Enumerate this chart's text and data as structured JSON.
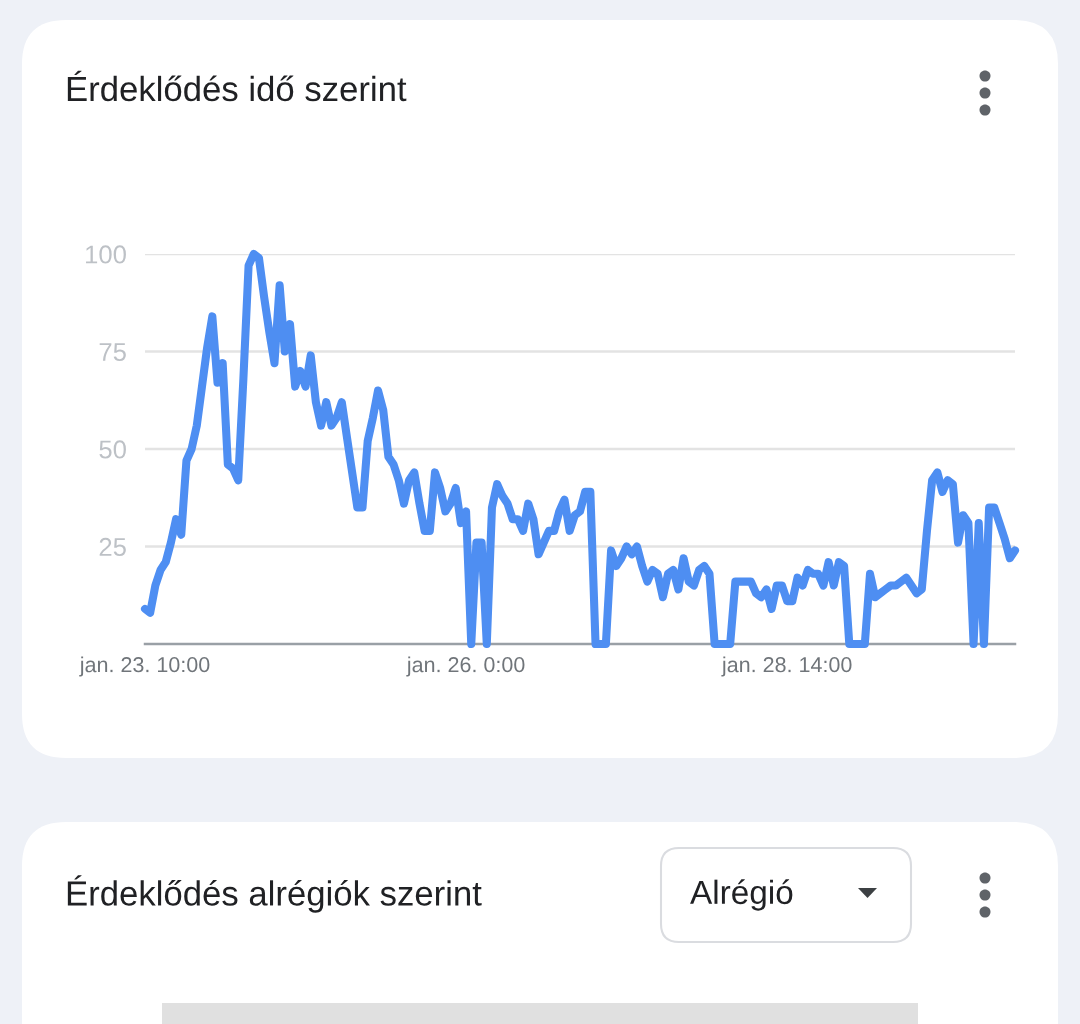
{
  "chart_data": [
    {
      "type": "line",
      "title": "Érdeklődés idő szerint",
      "categories": [
        "jan. 23. 10:00",
        null,
        null,
        null,
        null,
        null,
        null,
        null,
        null,
        null,
        null,
        null,
        null,
        null,
        null,
        null,
        null,
        null,
        null,
        null,
        null,
        null,
        null,
        null,
        null,
        null,
        null,
        null,
        null,
        null,
        null,
        null,
        null,
        null,
        null,
        null,
        null,
        null,
        null,
        null,
        null,
        null,
        null,
        null,
        null,
        null,
        null,
        null,
        null,
        null,
        null,
        null,
        null,
        null,
        null,
        null,
        null,
        null,
        null,
        null,
        null,
        null,
        "jan. 26. 0:00",
        null,
        null,
        null,
        null,
        null,
        null,
        null,
        null,
        null,
        null,
        null,
        null,
        null,
        null,
        null,
        null,
        null,
        null,
        null,
        null,
        null,
        null,
        null,
        null,
        null,
        null,
        null,
        null,
        null,
        null,
        null,
        null,
        null,
        null,
        null,
        null,
        null,
        null,
        null,
        null,
        null,
        null,
        null,
        null,
        null,
        null,
        null,
        null,
        null,
        null,
        null,
        null,
        null,
        null,
        null,
        null,
        null,
        null,
        null,
        null,
        null,
        "jan. 28. 14:00",
        null,
        null,
        null,
        null,
        null,
        null,
        null,
        null,
        null,
        null,
        null,
        null,
        null,
        null,
        null,
        null,
        null,
        null,
        null,
        null,
        null,
        null,
        null,
        null,
        null,
        null,
        null,
        null,
        null,
        null,
        null,
        null,
        null,
        null,
        null,
        null,
        null,
        null,
        null,
        null,
        null,
        null,
        null,
        null
      ],
      "series": [
        {
          "color": "#4e8ef2",
          "values": [
            9,
            8,
            15,
            19,
            21,
            26,
            32,
            28,
            47,
            50,
            56,
            66,
            76,
            84,
            67,
            72,
            46,
            45,
            42,
            68,
            97,
            100,
            99,
            89,
            80,
            72,
            92,
            75,
            82,
            66,
            70,
            66,
            74,
            62,
            56,
            62,
            56,
            58,
            62,
            53,
            44,
            35,
            35,
            52,
            58,
            65,
            60,
            48,
            46,
            42,
            36,
            42,
            44,
            36,
            29,
            29,
            44,
            40,
            34,
            36,
            40,
            31,
            34,
            0,
            26,
            26,
            0,
            35,
            41,
            38,
            36,
            32,
            32,
            29,
            36,
            32,
            23,
            26,
            29,
            29,
            34,
            37,
            29,
            33,
            34,
            39,
            39,
            0,
            0,
            0,
            24,
            20,
            22,
            25,
            23,
            25,
            20,
            16,
            19,
            18,
            12,
            18,
            19,
            14,
            22,
            16,
            15,
            19,
            20,
            18,
            0,
            0,
            0,
            0,
            16,
            16,
            16,
            16,
            13,
            12,
            14,
            9,
            15,
            15,
            11,
            11,
            17,
            15,
            19,
            18,
            18,
            15,
            21,
            15,
            21,
            20,
            0,
            0,
            0,
            0,
            18,
            12,
            13,
            14,
            15,
            15,
            16,
            17,
            15,
            13,
            14,
            29,
            42,
            44,
            39,
            42,
            41,
            26,
            33,
            31,
            0,
            31,
            0,
            35,
            35,
            31,
            27,
            22,
            24
          ]
        }
      ],
      "ylim": [
        0,
        100
      ],
      "yticks": [
        25,
        50,
        75,
        100
      ],
      "grid": "y"
    },
    {
      "type": "other",
      "title": "Érdeklődés alrégiók szerint",
      "annotations": [
        "Alrégió"
      ]
    }
  ]
}
